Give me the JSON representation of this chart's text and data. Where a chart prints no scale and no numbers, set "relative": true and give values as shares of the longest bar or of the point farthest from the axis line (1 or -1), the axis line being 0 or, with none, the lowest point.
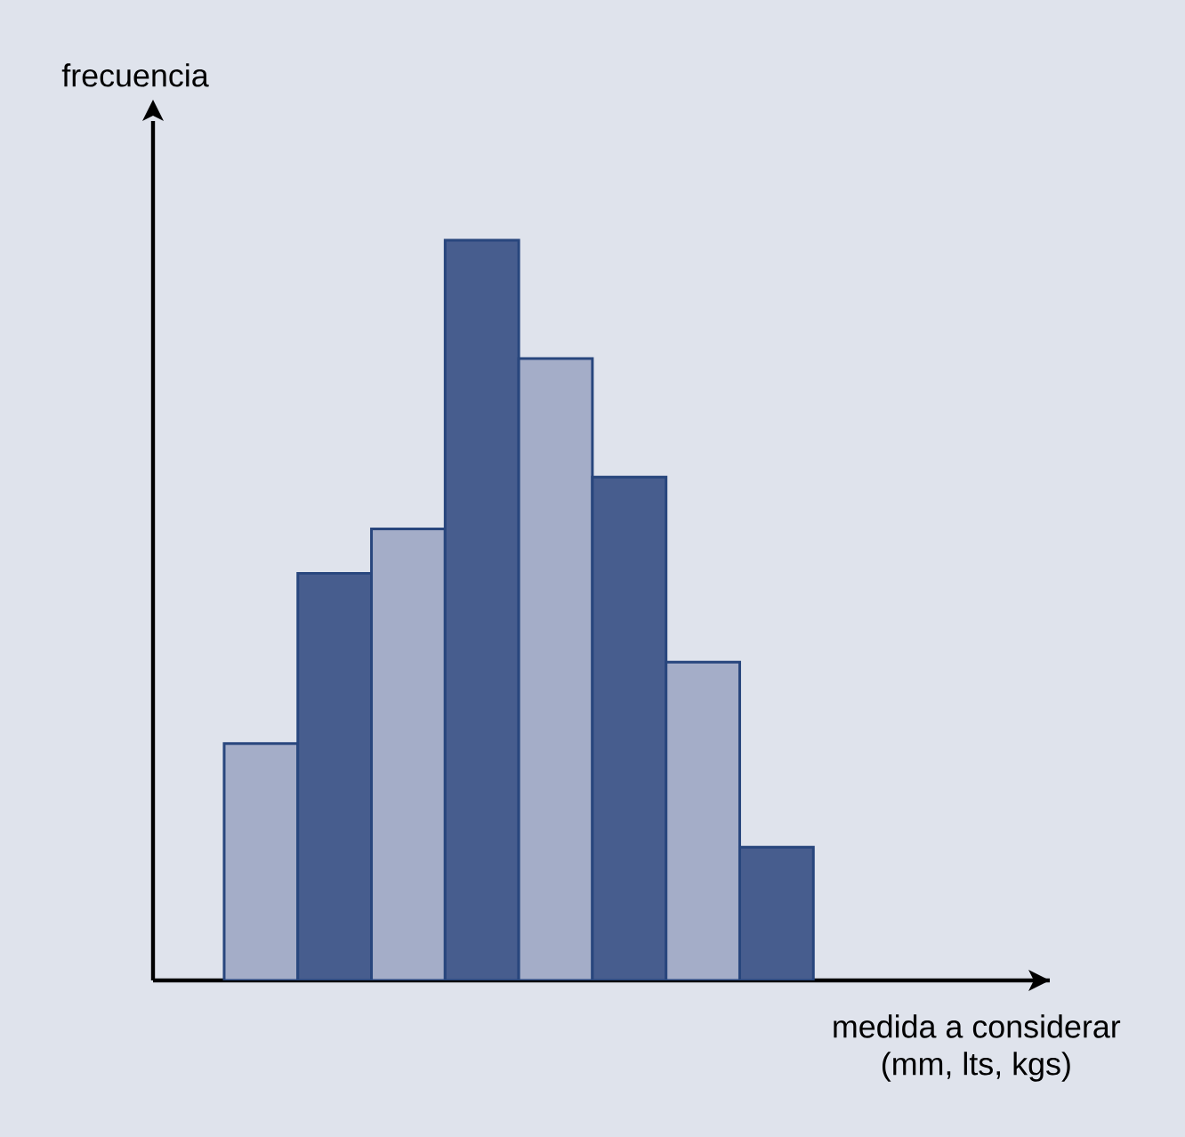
{
  "chart_data": {
    "type": "bar",
    "relative": true,
    "xlabel": "medida a considerar (mm, lts, kgs)",
    "ylabel": "frecuencia",
    "categories": [
      null,
      null,
      null,
      null,
      null,
      null,
      null,
      null
    ],
    "values": [
      0.32,
      0.55,
      0.61,
      1,
      0.84,
      0.68,
      0.43,
      0.18
    ],
    "colors": [
      "#a4adc8",
      "#475d8e",
      "#a4adc8",
      "#475d8e",
      "#a4adc8",
      "#475d8e",
      "#a4adc8",
      "#475d8e"
    ]
  }
}
